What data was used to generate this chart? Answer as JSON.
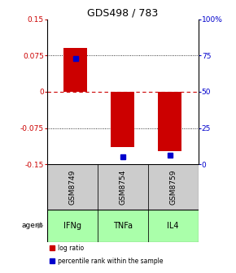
{
  "title": "GDS498 / 783",
  "samples": [
    "GSM8749",
    "GSM8754",
    "GSM8759"
  ],
  "agents": [
    "IFNg",
    "TNFa",
    "IL4"
  ],
  "log_ratios": [
    0.09,
    -0.115,
    -0.122
  ],
  "percentile_ranks": [
    73,
    5,
    6
  ],
  "bar_color": "#cc0000",
  "dot_color": "#0000cc",
  "left_ylim": [
    -0.15,
    0.15
  ],
  "right_ylim": [
    0,
    100
  ],
  "left_yticks": [
    -0.15,
    -0.075,
    0,
    0.075,
    0.15
  ],
  "left_yticklabels": [
    "-0.15",
    "-0.075",
    "0",
    "0.075",
    "0.15"
  ],
  "right_yticks": [
    0,
    25,
    50,
    75,
    100
  ],
  "right_yticklabels": [
    "0",
    "25",
    "50",
    "75",
    "100%"
  ],
  "hline_dotted": [
    -0.075,
    0.075
  ],
  "hline_zero_color": "#cc0000",
  "gridline_color": "#555555",
  "sample_bg_color": "#cccccc",
  "agent_bg_color": "#aaffaa",
  "left_tick_color": "#cc0000",
  "right_tick_color": "#0000cc",
  "bar_width": 0.5,
  "x_positions": [
    0,
    1,
    2
  ],
  "legend_items": [
    {
      "color": "#cc0000",
      "label": "log ratio"
    },
    {
      "color": "#0000cc",
      "label": "percentile rank within the sample"
    }
  ]
}
